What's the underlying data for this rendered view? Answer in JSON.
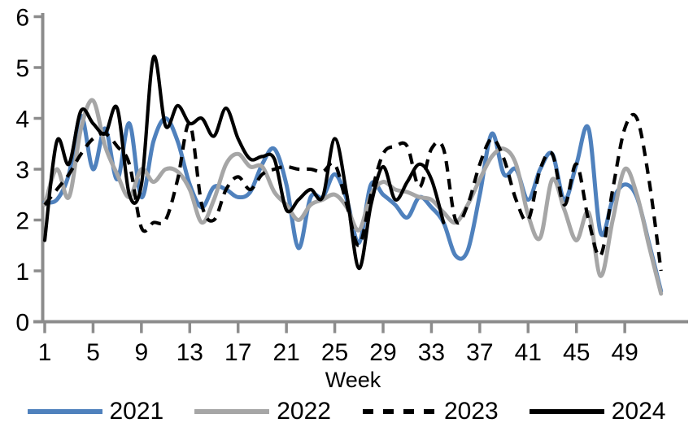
{
  "chart_data": {
    "type": "line",
    "title": "",
    "xlabel": "Week",
    "ylabel": "",
    "grid": false,
    "legend_position": "bottom",
    "axis_color": "#8C8C8C",
    "xlim": [
      1,
      52
    ],
    "ylim": [
      0,
      6
    ],
    "x_ticks": [
      1,
      5,
      9,
      13,
      17,
      21,
      25,
      29,
      33,
      37,
      41,
      45,
      49
    ],
    "y_ticks": [
      0,
      1,
      2,
      3,
      4,
      5,
      6
    ],
    "x": [
      1,
      2,
      3,
      4,
      5,
      6,
      7,
      8,
      9,
      10,
      11,
      12,
      13,
      14,
      15,
      16,
      17,
      18,
      19,
      20,
      21,
      22,
      23,
      24,
      25,
      26,
      27,
      28,
      29,
      30,
      31,
      32,
      33,
      34,
      35,
      36,
      37,
      38,
      39,
      40,
      41,
      42,
      43,
      44,
      45,
      46,
      47,
      48,
      49,
      50,
      51,
      52
    ],
    "series": [
      {
        "name": "2021",
        "color": "#4F81BD",
        "dash": "solid",
        "values": [
          2.35,
          2.4,
          2.9,
          4.05,
          3.0,
          3.8,
          2.8,
          3.9,
          2.45,
          3.55,
          4.0,
          3.55,
          2.7,
          2.25,
          2.65,
          2.6,
          2.45,
          2.55,
          3.1,
          3.4,
          2.7,
          1.45,
          2.45,
          2.45,
          2.9,
          2.4,
          1.55,
          2.7,
          2.5,
          2.3,
          2.05,
          2.45,
          2.25,
          1.95,
          1.3,
          1.4,
          2.5,
          3.7,
          2.9,
          3.0,
          2.4,
          3.0,
          3.3,
          2.4,
          3.1,
          3.8,
          1.75,
          2.4,
          2.7,
          2.45,
          1.55,
          0.6
        ]
      },
      {
        "name": "2022",
        "color": "#A6A6A6",
        "dash": "solid",
        "values": [
          2.3,
          3.0,
          2.45,
          3.8,
          4.35,
          3.45,
          2.9,
          2.45,
          3.0,
          2.75,
          3.0,
          2.95,
          2.6,
          1.95,
          2.4,
          3.1,
          3.3,
          3.05,
          3.05,
          2.55,
          2.3,
          2.0,
          2.3,
          2.4,
          2.5,
          2.25,
          1.8,
          2.5,
          2.75,
          2.6,
          2.55,
          2.45,
          2.4,
          2.15,
          1.95,
          2.3,
          2.8,
          3.25,
          3.4,
          3.1,
          2.1,
          1.65,
          2.8,
          2.2,
          1.6,
          2.15,
          0.9,
          2.0,
          3.0,
          2.5,
          1.5,
          0.55
        ]
      },
      {
        "name": "2023",
        "color": "#000000",
        "dash": "dashed",
        "values": [
          2.3,
          2.6,
          2.9,
          3.3,
          3.6,
          3.7,
          3.45,
          3.1,
          1.85,
          1.95,
          2.0,
          2.8,
          3.9,
          2.3,
          2.0,
          2.6,
          2.85,
          2.6,
          2.9,
          3.0,
          3.05,
          3.0,
          3.0,
          2.95,
          3.1,
          2.3,
          1.5,
          2.5,
          3.3,
          3.45,
          3.45,
          2.65,
          3.4,
          3.4,
          2.0,
          2.3,
          3.1,
          3.6,
          3.2,
          2.4,
          2.0,
          3.0,
          3.3,
          2.3,
          3.1,
          2.0,
          1.3,
          2.6,
          3.8,
          4.0,
          2.8,
          1.0
        ]
      },
      {
        "name": "2024",
        "color": "#000000",
        "dash": "solid",
        "values": [
          1.6,
          3.55,
          3.1,
          4.15,
          3.9,
          3.7,
          4.2,
          2.5,
          2.7,
          5.2,
          3.85,
          4.25,
          3.9,
          4.0,
          3.65,
          4.2,
          3.6,
          3.2,
          3.25,
          3.2,
          2.2,
          2.4,
          2.6,
          2.45,
          3.6,
          2.5,
          1.05,
          2.3,
          3.05,
          2.4,
          2.75,
          3.1,
          2.8,
          1.95
        ]
      }
    ]
  }
}
